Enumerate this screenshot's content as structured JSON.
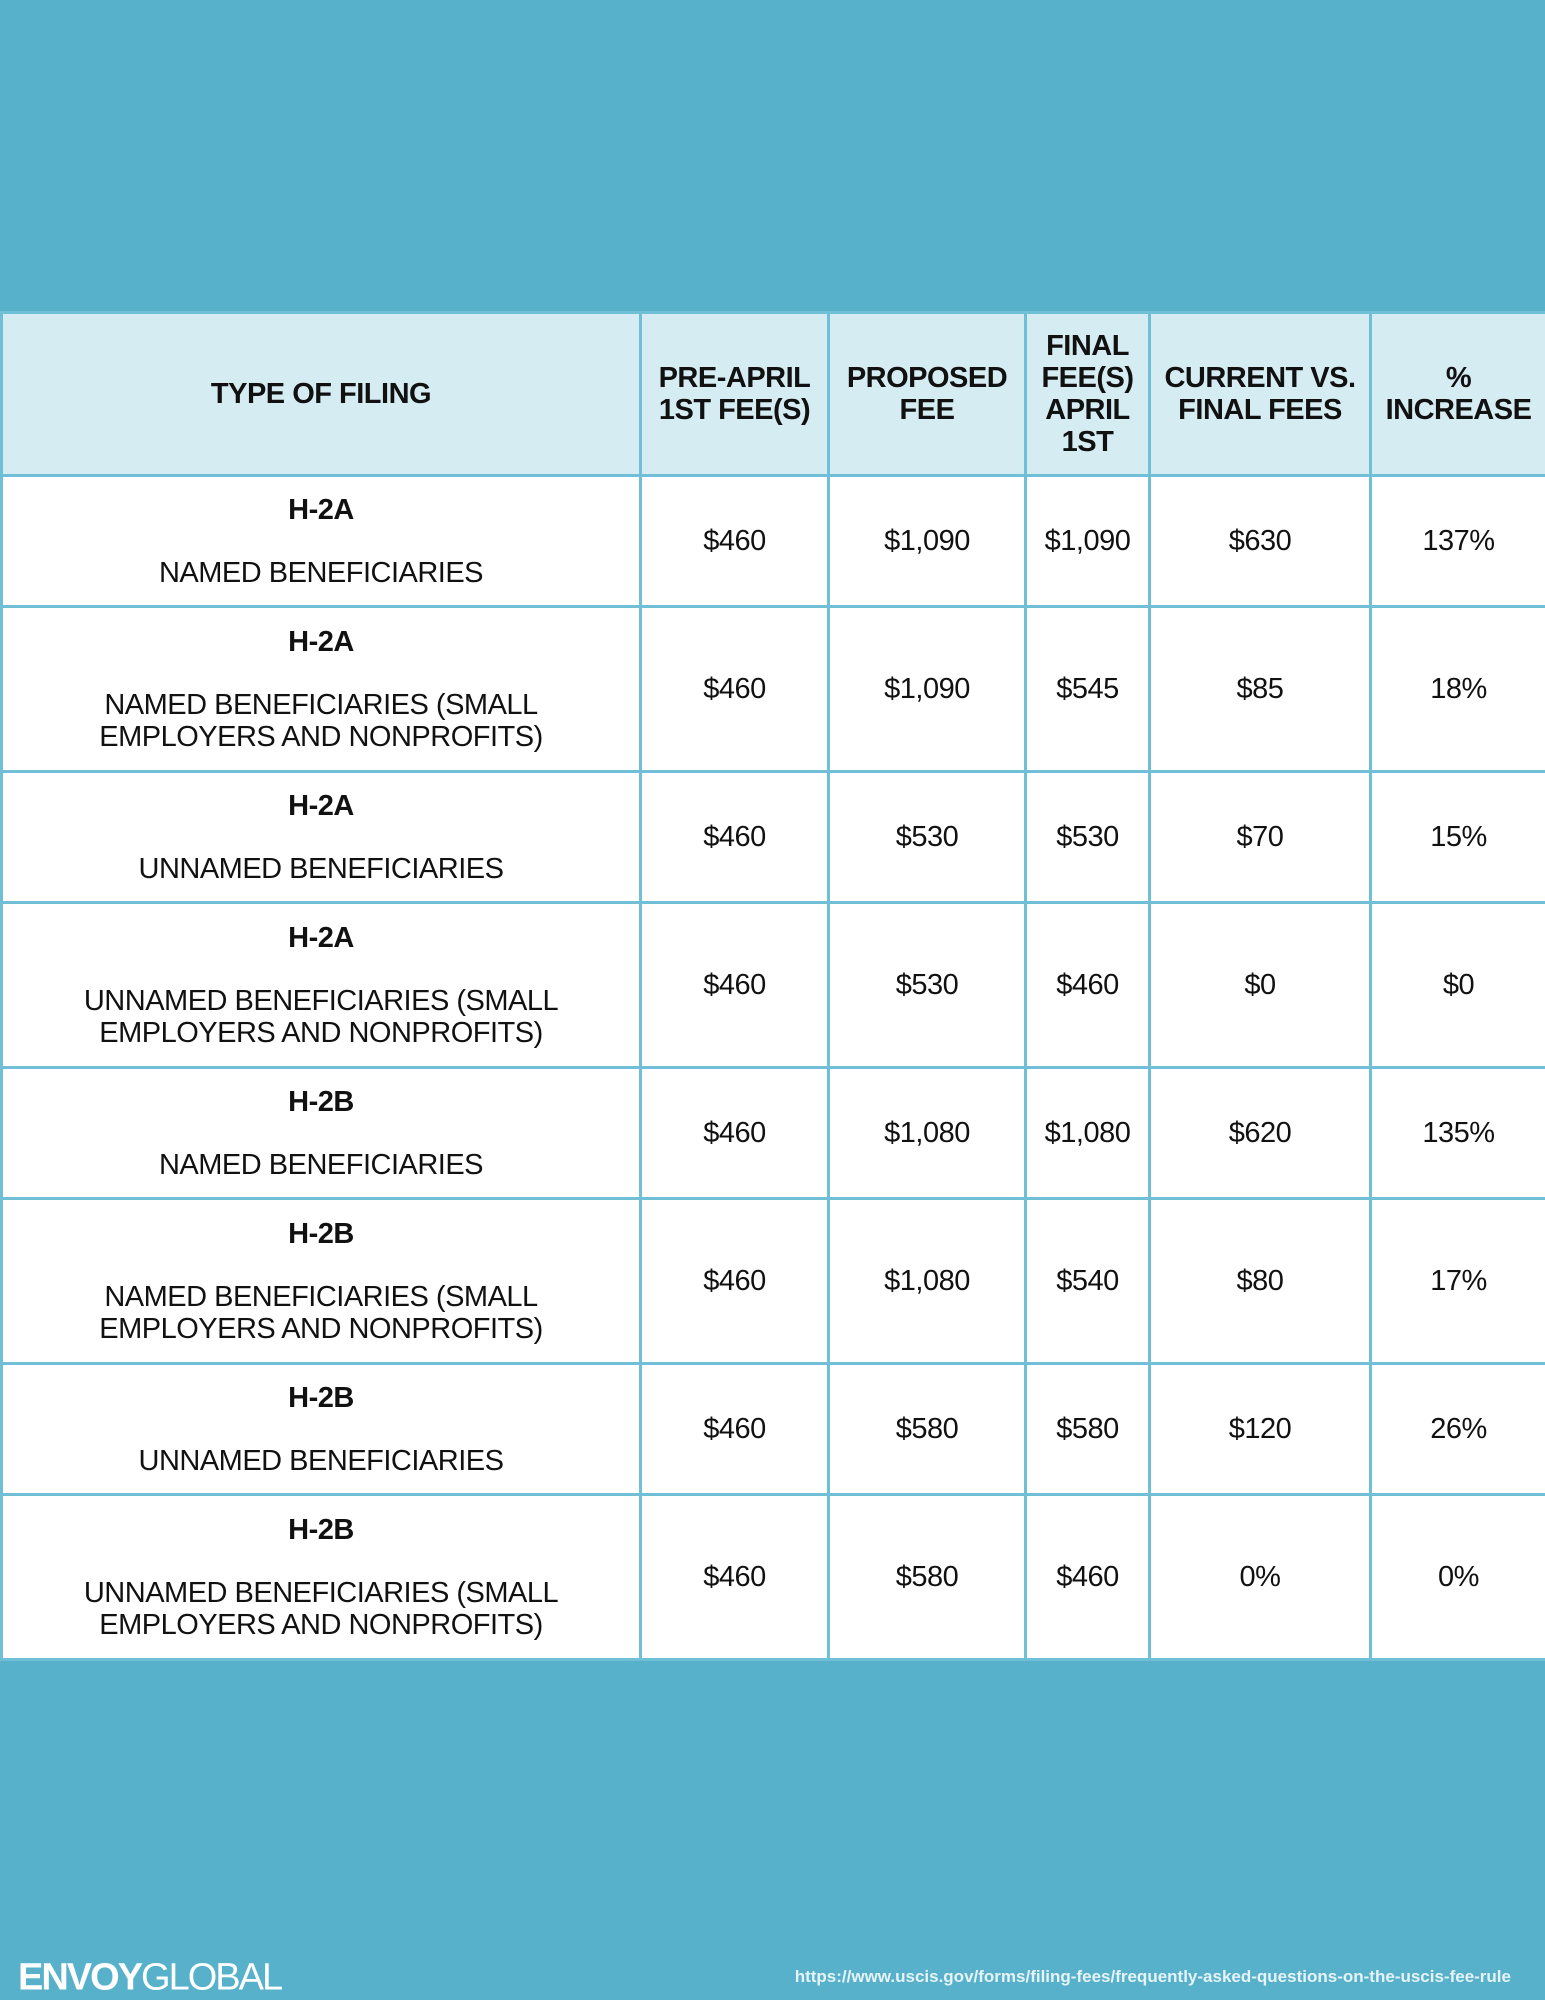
{
  "table": {
    "headers": [
      "TYPE OF FILING",
      "PRE-APRIL 1ST FEE(S)",
      "PROPOSED FEE",
      "FINAL FEE(S) APRIL 1ST",
      "CURRENT VS. FINAL FEES",
      "% INCREASE"
    ],
    "rows": [
      {
        "code": "H-2A",
        "desc": "NAMED BENEFICIARIES",
        "pre": "$460",
        "proposed": "$1,090",
        "final": "$1,090",
        "diff": "$630",
        "increase": "137%"
      },
      {
        "code": "H-2A",
        "desc": "NAMED BENEFICIARIES (SMALL EMPLOYERS AND NONPROFITS)",
        "pre": "$460",
        "proposed": "$1,090",
        "final": "$545",
        "diff": "$85",
        "increase": "18%"
      },
      {
        "code": "H-2A",
        "desc": "UNNAMED BENEFICIARIES",
        "pre": "$460",
        "proposed": "$530",
        "final": "$530",
        "diff": "$70",
        "increase": "15%"
      },
      {
        "code": "H-2A",
        "desc": "UNNAMED BENEFICIARIES (SMALL EMPLOYERS AND NONPROFITS)",
        "pre": "$460",
        "proposed": "$530",
        "final": "$460",
        "diff": "$0",
        "increase": "$0"
      },
      {
        "code": "H-2B",
        "desc": "NAMED BENEFICIARIES",
        "pre": "$460",
        "proposed": "$1,080",
        "final": "$1,080",
        "diff": "$620",
        "increase": "135%"
      },
      {
        "code": "H-2B",
        "desc": "NAMED BENEFICIARIES (SMALL EMPLOYERS AND NONPROFITS)",
        "pre": "$460",
        "proposed": "$1,080",
        "final": "$540",
        "diff": "$80",
        "increase": "17%"
      },
      {
        "code": "H-2B",
        "desc": "UNNAMED BENEFICIARIES",
        "pre": "$460",
        "proposed": "$580",
        "final": "$580",
        "diff": "$120",
        "increase": "26%"
      },
      {
        "code": "H-2B",
        "desc": "UNNAMED BENEFICIARIES (SMALL EMPLOYERS AND NONPROFITS)",
        "pre": "$460",
        "proposed": "$580",
        "final": "$460",
        "diff": "0%",
        "increase": "0%"
      }
    ]
  },
  "footer": {
    "logo_bold": "ENVOY",
    "logo_light": "GLOBAL",
    "source_url": "https://www.uscis.gov/forms/filing-fees/frequently-asked-questions-on-the-uscis-fee-rule"
  },
  "colors": {
    "background": "#57b1cb",
    "header_bg": "#d5ecf3",
    "border": "#6fbfd6"
  }
}
